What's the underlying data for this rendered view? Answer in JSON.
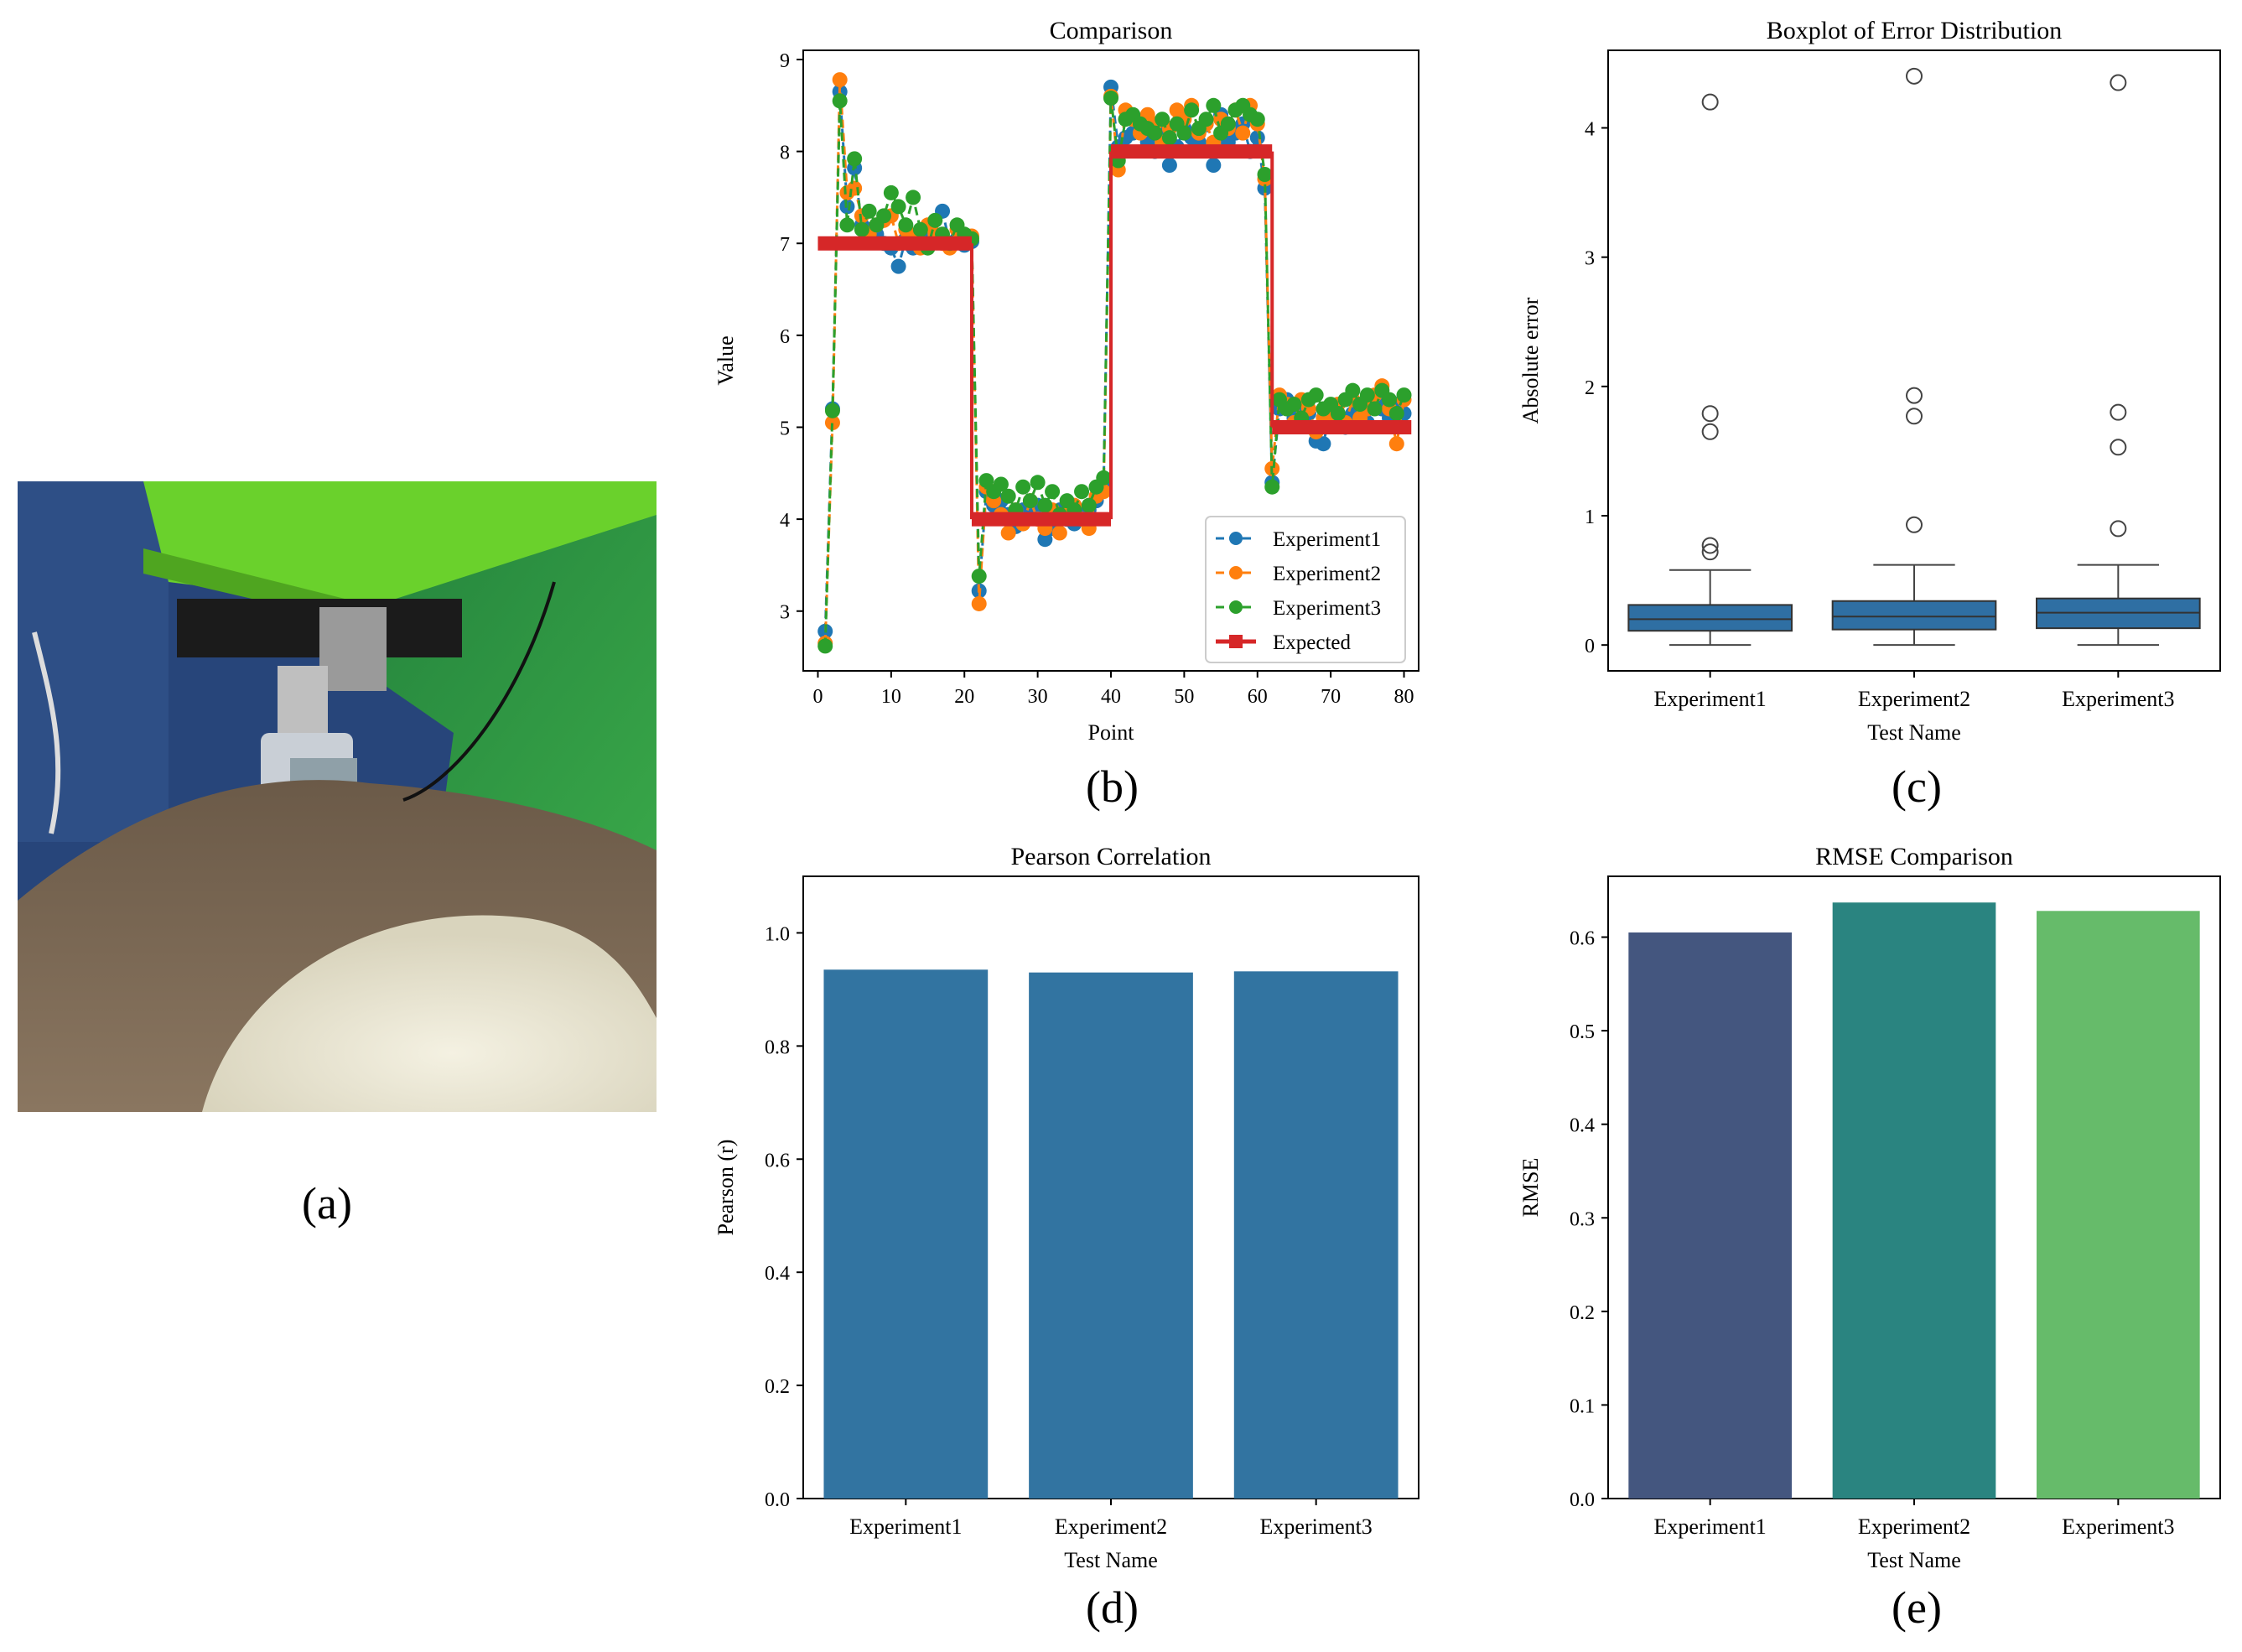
{
  "panels": {
    "a": {
      "label": "(a)",
      "photo_description_name": "robot-ultrasound-photo"
    },
    "b": {
      "label": "(b)"
    },
    "c": {
      "label": "(c)"
    },
    "d": {
      "label": "(d)"
    },
    "e": {
      "label": "(e)"
    }
  },
  "colors": {
    "exp1": "#1f77b4",
    "exp2": "#ff7f0e",
    "exp3": "#2ca02c",
    "expected": "#d62728",
    "box": "#2f6fa3",
    "pearson": "#3274a1",
    "rmse1": "#44567f",
    "rmse2": "#2a8480",
    "rmse3": "#66bb6a"
  },
  "chart_data": [
    {
      "id": "b",
      "type": "line",
      "title": "Comparison",
      "xlabel": "Point",
      "ylabel": "Value",
      "xlim": [
        -2,
        82
      ],
      "ylim": [
        2.35,
        9.1
      ],
      "xticks": [
        0,
        10,
        20,
        30,
        40,
        50,
        60,
        70,
        80
      ],
      "yticks": [
        3,
        4,
        5,
        6,
        7,
        8,
        9
      ],
      "legend_position": "lower-right",
      "expected": {
        "name": "Expected",
        "segments": [
          {
            "x": [
              0,
              21
            ],
            "y": 7.0
          },
          {
            "x": [
              21,
              40
            ],
            "y": 4.0
          },
          {
            "x": [
              40,
              62
            ],
            "y": 8.0
          },
          {
            "x": [
              62,
              81
            ],
            "y": 5.0
          }
        ],
        "jumps": [
          {
            "x": 21,
            "from": 7.0,
            "to": 4.0
          },
          {
            "x": 40,
            "from": 4.0,
            "to": 8.0
          },
          {
            "x": 62,
            "from": 8.0,
            "to": 5.0
          }
        ]
      },
      "series": [
        {
          "name": "Experiment1",
          "x": [
            1,
            2,
            3,
            4,
            5,
            6,
            7,
            8,
            9,
            10,
            11,
            12,
            13,
            14,
            15,
            16,
            17,
            18,
            19,
            20,
            21,
            22,
            23,
            24,
            25,
            26,
            27,
            28,
            29,
            30,
            31,
            32,
            33,
            34,
            35,
            36,
            37,
            38,
            39,
            40,
            41,
            42,
            43,
            44,
            45,
            46,
            47,
            48,
            49,
            50,
            51,
            52,
            53,
            54,
            55,
            56,
            57,
            58,
            59,
            60,
            61,
            62,
            63,
            64,
            65,
            66,
            67,
            68,
            69,
            70,
            71,
            72,
            73,
            74,
            75,
            76,
            77,
            78,
            79,
            80
          ],
          "values": [
            2.78,
            5.2,
            8.65,
            7.4,
            7.82,
            7.2,
            7.15,
            7.1,
            7.0,
            6.95,
            6.75,
            7.05,
            6.95,
            7.1,
            7.0,
            7.05,
            7.35,
            7.0,
            7.05,
            6.98,
            7.02,
            3.22,
            4.3,
            4.15,
            4.2,
            4.05,
            3.92,
            4.1,
            4.05,
            4.15,
            3.78,
            3.9,
            4.1,
            4.0,
            3.95,
            4.05,
            4.1,
            4.2,
            4.35,
            8.7,
            8.05,
            8.15,
            8.2,
            8.3,
            8.1,
            8.0,
            8.2,
            7.85,
            8.05,
            8.25,
            8.15,
            8.1,
            8.3,
            7.85,
            8.4,
            8.1,
            8.2,
            8.3,
            8.0,
            8.15,
            7.6,
            4.4,
            5.2,
            5.3,
            5.1,
            5.25,
            5.15,
            4.85,
            4.82,
            5.2,
            5.1,
            5.0,
            5.15,
            5.2,
            5.05,
            5.3,
            5.2,
            5.1,
            5.25,
            5.15
          ]
        },
        {
          "name": "Experiment2",
          "x": [
            1,
            2,
            3,
            4,
            5,
            6,
            7,
            8,
            9,
            10,
            11,
            12,
            13,
            14,
            15,
            16,
            17,
            18,
            19,
            20,
            21,
            22,
            23,
            24,
            25,
            26,
            27,
            28,
            29,
            30,
            31,
            32,
            33,
            34,
            35,
            36,
            37,
            38,
            39,
            40,
            41,
            42,
            43,
            44,
            45,
            46,
            47,
            48,
            49,
            50,
            51,
            52,
            53,
            54,
            55,
            56,
            57,
            58,
            59,
            60,
            61,
            62,
            63,
            64,
            65,
            66,
            67,
            68,
            69,
            70,
            71,
            72,
            73,
            74,
            75,
            76,
            77,
            78,
            79,
            80
          ],
          "values": [
            2.65,
            5.05,
            8.78,
            7.55,
            7.6,
            7.3,
            7.1,
            7.2,
            7.25,
            7.3,
            7.0,
            7.15,
            7.05,
            6.95,
            7.2,
            7.1,
            7.0,
            6.95,
            7.15,
            7.05,
            7.08,
            3.08,
            4.35,
            4.2,
            4.05,
            3.85,
            4.1,
            3.95,
            4.2,
            4.0,
            3.9,
            4.1,
            3.85,
            4.05,
            4.15,
            4.0,
            3.9,
            4.25,
            4.3,
            8.6,
            7.8,
            8.45,
            8.35,
            8.2,
            8.4,
            8.3,
            8.1,
            8.25,
            8.45,
            8.35,
            8.5,
            8.2,
            8.3,
            8.1,
            8.35,
            8.25,
            8.45,
            8.2,
            8.5,
            8.3,
            7.7,
            4.55,
            5.35,
            5.25,
            5.05,
            5.3,
            5.2,
            4.95,
            5.1,
            5.15,
            5.25,
            5.05,
            5.3,
            5.1,
            5.2,
            5.35,
            5.45,
            5.2,
            4.82,
            5.3
          ]
        },
        {
          "name": "Experiment3",
          "x": [
            1,
            2,
            3,
            4,
            5,
            6,
            7,
            8,
            9,
            10,
            11,
            12,
            13,
            14,
            15,
            16,
            17,
            18,
            19,
            20,
            21,
            22,
            23,
            24,
            25,
            26,
            27,
            28,
            29,
            30,
            31,
            32,
            33,
            34,
            35,
            36,
            37,
            38,
            39,
            40,
            41,
            42,
            43,
            44,
            45,
            46,
            47,
            48,
            49,
            50,
            51,
            52,
            53,
            54,
            55,
            56,
            57,
            58,
            59,
            60,
            61,
            62,
            63,
            64,
            65,
            66,
            67,
            68,
            69,
            70,
            71,
            72,
            73,
            74,
            75,
            76,
            77,
            78,
            79,
            80
          ],
          "values": [
            2.62,
            5.18,
            8.55,
            7.2,
            7.92,
            7.15,
            7.35,
            7.2,
            7.3,
            7.55,
            7.4,
            7.2,
            7.5,
            7.15,
            6.95,
            7.25,
            7.1,
            7.0,
            7.2,
            7.1,
            7.05,
            3.38,
            4.42,
            4.3,
            4.38,
            4.25,
            4.1,
            4.35,
            4.2,
            4.4,
            4.15,
            4.3,
            4.05,
            4.2,
            4.1,
            4.3,
            4.15,
            4.35,
            4.45,
            8.58,
            7.9,
            8.35,
            8.4,
            8.3,
            8.25,
            8.2,
            8.35,
            8.15,
            8.3,
            8.2,
            8.45,
            8.25,
            8.35,
            8.5,
            8.2,
            8.3,
            8.45,
            8.5,
            8.4,
            8.35,
            7.75,
            4.35,
            5.3,
            5.2,
            5.25,
            5.1,
            5.3,
            5.35,
            5.2,
            5.25,
            5.15,
            5.3,
            5.4,
            5.25,
            5.35,
            5.2,
            5.4,
            5.3,
            5.15,
            5.35
          ]
        }
      ],
      "legend": [
        "Experiment1",
        "Experiment2",
        "Experiment3",
        "Expected"
      ]
    },
    {
      "id": "c",
      "type": "box",
      "title": "Boxplot of Error Distribution",
      "xlabel": "Test Name",
      "ylabel": "Absolute error",
      "ylim": [
        -0.2,
        4.6
      ],
      "yticks": [
        0,
        1,
        2,
        3,
        4
      ],
      "categories": [
        "Experiment1",
        "Experiment2",
        "Experiment3"
      ],
      "boxes": [
        {
          "min": 0.0,
          "q1": 0.11,
          "median": 0.2,
          "q3": 0.31,
          "max": 0.58,
          "outliers": [
            4.2,
            1.79,
            1.65,
            0.77,
            0.72
          ]
        },
        {
          "min": 0.0,
          "q1": 0.12,
          "median": 0.22,
          "q3": 0.34,
          "max": 0.62,
          "outliers": [
            4.4,
            1.93,
            1.77,
            0.93
          ]
        },
        {
          "min": 0.0,
          "q1": 0.13,
          "median": 0.25,
          "q3": 0.36,
          "max": 0.62,
          "outliers": [
            4.35,
            1.8,
            1.53,
            0.9
          ]
        }
      ]
    },
    {
      "id": "d",
      "type": "bar",
      "title": "Pearson Correlation",
      "xlabel": "Test Name",
      "ylabel": "Pearson (r)",
      "ylim": [
        0,
        1.1
      ],
      "yticks": [
        "0.0",
        "0.2",
        "0.4",
        "0.6",
        "0.8",
        "1.0"
      ],
      "categories": [
        "Experiment1",
        "Experiment2",
        "Experiment3"
      ],
      "values": [
        0.935,
        0.93,
        0.932
      ]
    },
    {
      "id": "e",
      "type": "bar",
      "title": "RMSE Comparison",
      "xlabel": "Test Name",
      "ylabel": "RMSE",
      "ylim": [
        0,
        0.665
      ],
      "yticks": [
        "0.0",
        "0.1",
        "0.2",
        "0.3",
        "0.4",
        "0.5",
        "0.6"
      ],
      "categories": [
        "Experiment1",
        "Experiment2",
        "Experiment3"
      ],
      "values": [
        0.605,
        0.637,
        0.628
      ]
    }
  ]
}
